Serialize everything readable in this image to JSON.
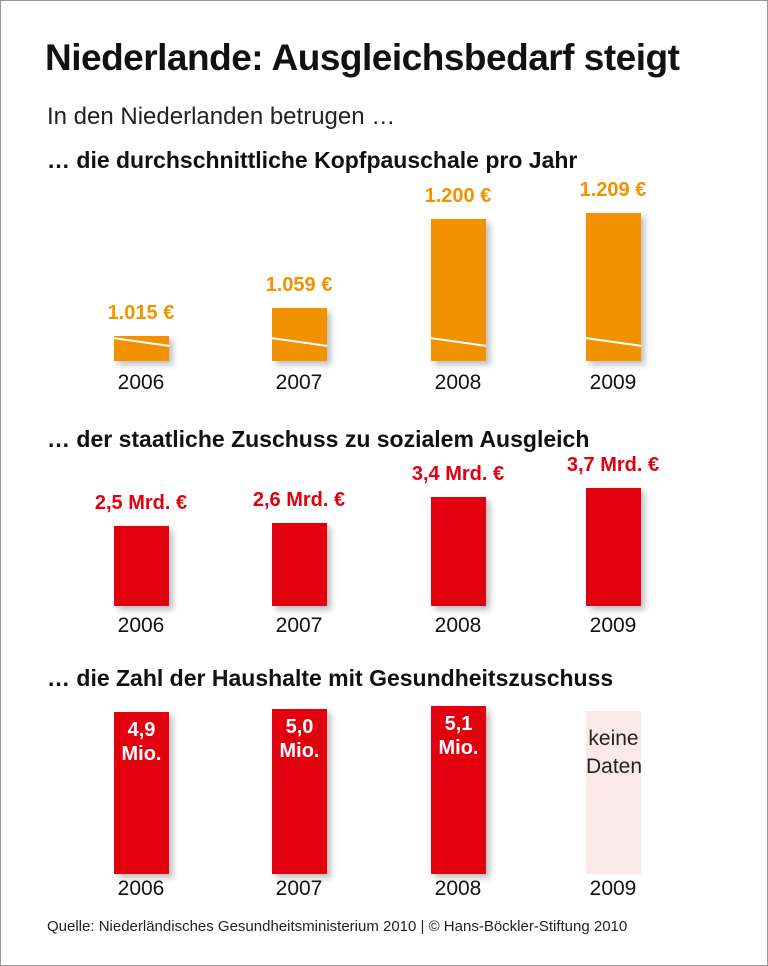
{
  "title": "Niederlande: Ausgleichsbedarf steigt",
  "intro": "In den Niederlanden betrugen …",
  "source": "Quelle: Niederländisches Gesundheitsministerium 2010 | © Hans-Böckler-Stiftung 2010",
  "colors": {
    "orange": "#f39200",
    "red": "#e2000f",
    "pink": "#fbe9ea"
  },
  "chart_data": [
    {
      "type": "bar",
      "title": "… die durchschnittliche Kopfpauschale pro Jahr",
      "categories": [
        "2006",
        "2007",
        "2008",
        "2009"
      ],
      "values": [
        1015,
        1059,
        1200,
        1209
      ],
      "labels": [
        "1.015 €",
        "1.059 €",
        "1.200 €",
        "1.209 €"
      ],
      "unit": "€",
      "axis_break": true
    },
    {
      "type": "bar",
      "title": "… der staatliche Zuschuss zu sozialem Ausgleich",
      "categories": [
        "2006",
        "2007",
        "2008",
        "2009"
      ],
      "values": [
        2.5,
        2.6,
        3.4,
        3.7
      ],
      "labels": [
        "2,5 Mrd. €",
        "2,6 Mrd. €",
        "3,4 Mrd. €",
        "3,7 Mrd. €"
      ],
      "unit": "Mrd. €"
    },
    {
      "type": "bar",
      "title": "… die Zahl der Haushalte mit Gesundheitszuschuss",
      "categories": [
        "2006",
        "2007",
        "2008",
        "2009"
      ],
      "values": [
        4.9,
        5.0,
        5.1,
        null
      ],
      "labels": [
        "4,9 Mio.",
        "5,0 Mio.",
        "5,1 Mio.",
        "keine Daten"
      ],
      "unit": "Mio."
    }
  ]
}
